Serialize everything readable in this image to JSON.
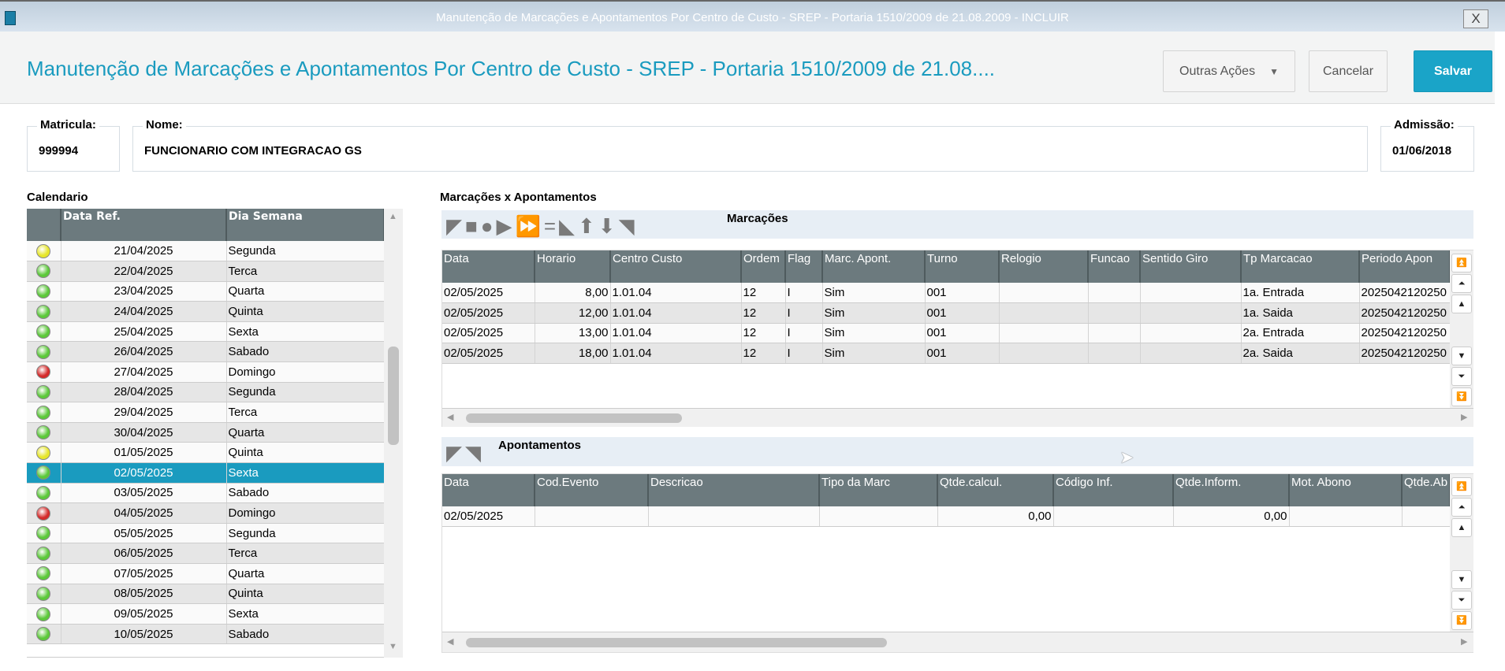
{
  "window": {
    "title": "Manutenção de Marcações e Apontamentos Por Centro de Custo - SREP - Portaria 1510/2009 de 21.08.2009 - INCLUIR",
    "close": "X"
  },
  "header": {
    "title": "Manutenção de Marcações e Apontamentos Por Centro de Custo - SREP - Portaria 1510/2009 de 21.08....",
    "more": "Outras Ações",
    "cancel": "Cancelar",
    "save": "Salvar"
  },
  "employee": {
    "matricula_label": "Matricula:",
    "matricula": "999994",
    "nome_label": "Nome:",
    "nome": "FUNCIONARIO COM INTEGRACAO GS",
    "admissao_label": "Admissão:",
    "admissao": "01/06/2018"
  },
  "calendar": {
    "title": "Calendario",
    "columns": [
      "",
      "Data Ref.",
      "Dia Semana"
    ],
    "status_colors": {
      "yellow": "#e6e62a",
      "green": "#5cc83a",
      "red": "#d42a2a"
    },
    "selected_index": 11,
    "rows": [
      {
        "status": "yellow",
        "date": "21/04/2025",
        "day": "Segunda"
      },
      {
        "status": "green",
        "date": "22/04/2025",
        "day": "Terca"
      },
      {
        "status": "green",
        "date": "23/04/2025",
        "day": "Quarta"
      },
      {
        "status": "green",
        "date": "24/04/2025",
        "day": "Quinta"
      },
      {
        "status": "green",
        "date": "25/04/2025",
        "day": "Sexta"
      },
      {
        "status": "green",
        "date": "26/04/2025",
        "day": "Sabado"
      },
      {
        "status": "red",
        "date": "27/04/2025",
        "day": "Domingo"
      },
      {
        "status": "green",
        "date": "28/04/2025",
        "day": "Segunda"
      },
      {
        "status": "green",
        "date": "29/04/2025",
        "day": "Terca"
      },
      {
        "status": "green",
        "date": "30/04/2025",
        "day": "Quarta"
      },
      {
        "status": "yellow",
        "date": "01/05/2025",
        "day": "Quinta"
      },
      {
        "status": "green",
        "date": "02/05/2025",
        "day": "Sexta"
      },
      {
        "status": "green",
        "date": "03/05/2025",
        "day": "Sabado"
      },
      {
        "status": "red",
        "date": "04/05/2025",
        "day": "Domingo"
      },
      {
        "status": "green",
        "date": "05/05/2025",
        "day": "Segunda"
      },
      {
        "status": "green",
        "date": "06/05/2025",
        "day": "Terca"
      },
      {
        "status": "green",
        "date": "07/05/2025",
        "day": "Quarta"
      },
      {
        "status": "green",
        "date": "08/05/2025",
        "day": "Quinta"
      },
      {
        "status": "green",
        "date": "09/05/2025",
        "day": "Sexta"
      },
      {
        "status": "green",
        "date": "10/05/2025",
        "day": "Sabado"
      }
    ]
  },
  "main": {
    "title": "Marcações x Apontamentos"
  },
  "marcacoes": {
    "title": "Marcações",
    "columns": [
      "Data",
      "Horario",
      "Centro Custo",
      "Ordem",
      "Flag",
      "Marc. Apont.",
      "Turno",
      "Relogio",
      "Funcao",
      "Sentido Giro",
      "Tp Marcacao",
      "Periodo Apon"
    ],
    "rows": [
      [
        "02/05/2025",
        "8,00",
        "1.01.04",
        "12",
        "I",
        "Sim",
        "001",
        "",
        "",
        "",
        "1a. Entrada",
        "2025042120250"
      ],
      [
        "02/05/2025",
        "12,00",
        "1.01.04",
        "12",
        "I",
        "Sim",
        "001",
        "",
        "",
        "",
        "1a. Saida",
        "2025042120250"
      ],
      [
        "02/05/2025",
        "13,00",
        "1.01.04",
        "12",
        "I",
        "Sim",
        "001",
        "",
        "",
        "",
        "2a. Entrada",
        "2025042120250"
      ],
      [
        "02/05/2025",
        "18,00",
        "1.01.04",
        "12",
        "I",
        "Sim",
        "001",
        "",
        "",
        "",
        "2a. Saida",
        "2025042120250"
      ]
    ]
  },
  "apontamentos": {
    "title": "Apontamentos",
    "columns": [
      "Data",
      "Cod.Evento",
      "Descricao",
      "Tipo da Marc",
      "Qtde.calcul.",
      "Código Inf.",
      "Qtde.Inform.",
      "Mot. Abono",
      "Qtde.Ab"
    ],
    "rows": [
      [
        "02/05/2025",
        "",
        "",
        "",
        "0,00",
        "",
        "0,00",
        "",
        ""
      ]
    ]
  },
  "colors": {
    "accent": "#1a9bbf",
    "header_bg": "#6c7a7e",
    "save": "#1aa4c8"
  }
}
